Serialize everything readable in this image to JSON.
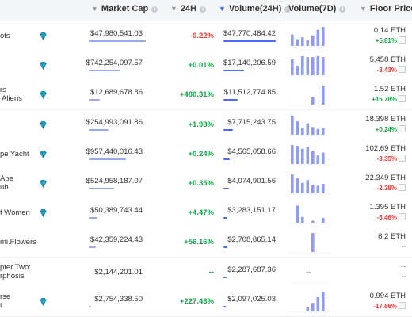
{
  "header": {
    "market_cap": "Market Cap",
    "h24": "24H",
    "volume24": "Volume(24H)",
    "volume7d": "Volume(7D)",
    "floor_price": "Floor Price"
  },
  "colors": {
    "positive": "#16a34a",
    "negative": "#e53935",
    "accent": "#4a6cf7",
    "bar": "#9aa8f2"
  },
  "rows": [
    {
      "name": "ots",
      "gem": true,
      "market_cap": "$47,980,541.03",
      "mcap_fill": 1.0,
      "change": "-0.22%",
      "dir": "neg",
      "volume": "$47,770,484.42",
      "vol_fill": 1.0,
      "spark": [
        0.6,
        0.35,
        0.45,
        0.3,
        0.55,
        0.85,
        1.0
      ],
      "floor": "0.14 ETH",
      "floor_change": "+5.81%",
      "floor_dir": "pos"
    },
    {
      "name": "",
      "gem": true,
      "market_cap": "$742,254,097.57",
      "mcap_fill": 0.55,
      "change": "+0.01%",
      "dir": "pos",
      "volume": "$17,140,206.59",
      "vol_fill": 0.4,
      "spark": [
        0.85,
        0.5,
        1.0,
        0.95,
        0.95,
        1.0,
        0.95
      ],
      "floor": "5.458 ETH",
      "floor_change": "-3.43%",
      "floor_dir": "neg"
    },
    {
      "name": "rs\n Aliens",
      "gem": true,
      "market_cap": "$12,689,678.86",
      "mcap_fill": 0.2,
      "change": "+480.31%",
      "dir": "pos",
      "volume": "$11,512,774.85",
      "vol_fill": 0.28,
      "spark": [
        0,
        0,
        0,
        0,
        0.4,
        0,
        1.0
      ],
      "floor": "1.52 ETH",
      "floor_change": "+15.78%",
      "floor_dir": "pos"
    },
    {
      "name": "",
      "gem": true,
      "market_cap": "$254,993,091.86",
      "mcap_fill": 0.35,
      "change": "+1.98%",
      "dir": "pos",
      "volume": "$7,715,243.75",
      "vol_fill": 0.18,
      "spark": [
        1.0,
        0.7,
        0.35,
        0.6,
        0.4,
        0.3,
        0.35
      ],
      "floor": "18.398 ETH",
      "floor_change": "+0.24%",
      "floor_dir": "pos"
    },
    {
      "name": "pe Yacht",
      "gem": true,
      "market_cap": "$957,440,016.43",
      "mcap_fill": 0.65,
      "change": "+0.24%",
      "dir": "pos",
      "volume": "$4,565,058.66",
      "vol_fill": 0.12,
      "spark": [
        1.0,
        0.95,
        0.8,
        0.9,
        0.7,
        0.45,
        0.6
      ],
      "floor": "102.69 ETH",
      "floor_change": "-3.35%",
      "floor_dir": "neg"
    },
    {
      "name": "Ape\nub",
      "gem": true,
      "market_cap": "$524,958,187.07",
      "mcap_fill": 0.45,
      "change": "+0.35%",
      "dir": "pos",
      "volume": "$4,074,901.56",
      "vol_fill": 0.1,
      "spark": [
        1.0,
        0.8,
        0.55,
        0.7,
        0.45,
        0.4,
        0.5
      ],
      "floor": "22.349 ETH",
      "floor_change": "-2.38%",
      "floor_dir": "neg"
    },
    {
      "name": "f Women",
      "gem": true,
      "market_cap": "$50,389,743.44",
      "mcap_fill": 0.15,
      "change": "+4.47%",
      "dir": "pos",
      "volume": "$3,283,151.17",
      "vol_fill": 0.08,
      "spark": [
        0,
        0.9,
        0.3,
        0,
        0.1,
        0,
        0.25
      ],
      "floor": "1.395 ETH",
      "floor_change": "-5.46%",
      "floor_dir": "neg"
    },
    {
      "name": "mi.Flowers",
      "gem": false,
      "market_cap": "$42,359,224.43",
      "mcap_fill": 0.12,
      "change": "+56.16%",
      "dir": "pos",
      "volume": "$2,708,865.14",
      "vol_fill": 0.07,
      "spark": [
        0,
        0,
        0,
        0,
        1.0,
        0,
        0
      ],
      "floor": "6.2 ETH",
      "floor_change": "--",
      "floor_dir": "flat"
    },
    {
      "name": "pter Two:\nrphosis",
      "gem": false,
      "market_cap": "$2,144,201.01",
      "mcap_fill": 0.0,
      "change": "--",
      "dir": "flat",
      "volume": "$2,287,687.36",
      "vol_fill": 0.06,
      "spark": [],
      "spark_dash": "--",
      "floor": "--",
      "floor_change": "--",
      "floor_dir": "flat"
    },
    {
      "name": "rse\nt",
      "gem": true,
      "market_cap": "$2,754,338.50",
      "mcap_fill": 0.02,
      "change": "+227.43%",
      "dir": "pos",
      "volume": "$2,097,025.03",
      "vol_fill": 0.05,
      "spark": [
        0,
        0,
        0,
        0.25,
        0.45,
        0.75,
        1.0
      ],
      "floor": "0.994 ETH",
      "floor_change": "-17.86%",
      "floor_dir": "neg"
    }
  ]
}
